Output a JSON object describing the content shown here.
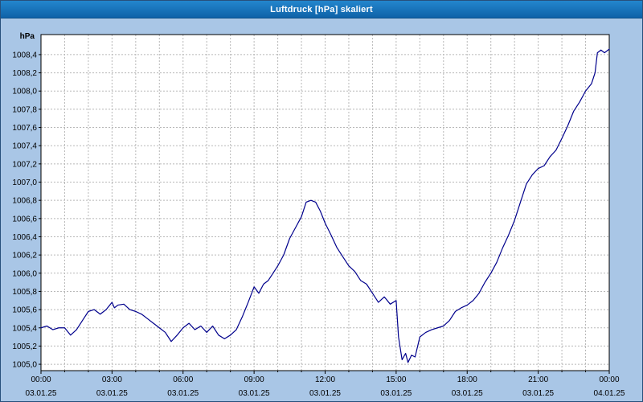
{
  "window": {
    "title": "Luftdruck [hPa] skaliert"
  },
  "colors": {
    "window_background": "#a9c6e6",
    "titlebar_background": "#1673b9",
    "titlebar_text": "#ffffff",
    "plot_background": "#ffffff",
    "grid": "#b8b8b8",
    "axis": "#000000",
    "series_line": "#00008c"
  },
  "chart_data": {
    "type": "line",
    "title": "Luftdruck [hPa] skaliert",
    "xlabel": "",
    "ylabel": "hPa",
    "x_unit": "hours_of_day",
    "grid": "dotted",
    "legend": "none",
    "xlim": [
      0,
      24
    ],
    "ylim": [
      1004.93,
      1008.62
    ],
    "y_ticks": [
      1005.0,
      1005.2,
      1005.4,
      1005.6,
      1005.8,
      1006.0,
      1006.2,
      1006.4,
      1006.6,
      1006.8,
      1007.0,
      1007.2,
      1007.4,
      1007.6,
      1007.8,
      1008.0,
      1008.2,
      1008.4
    ],
    "y_tick_labels": [
      "1005,0",
      "1005,2",
      "1005,4",
      "1005,6",
      "1005,8",
      "1006,0",
      "1006,2",
      "1006,4",
      "1006,6",
      "1006,8",
      "1007,0",
      "1007,2",
      "1007,4",
      "1007,6",
      "1007,8",
      "1008,0",
      "1008,2",
      "1008,4"
    ],
    "x_major_ticks": [
      0,
      3,
      6,
      9,
      12,
      15,
      18,
      21,
      24
    ],
    "x_tick_labels": [
      "00:00",
      "03:00",
      "06:00",
      "09:00",
      "12:00",
      "15:00",
      "18:00",
      "21:00",
      "00:00"
    ],
    "x_date_labels": [
      "03.01.25",
      "03.01.25",
      "03.01.25",
      "03.01.25",
      "03.01.25",
      "03.01.25",
      "03.01.25",
      "03.01.25",
      "04.01.25"
    ],
    "x_minor_grid_step_hours": 1,
    "x": [
      0,
      0.25,
      0.5,
      0.75,
      1,
      1.25,
      1.5,
      1.75,
      2,
      2.25,
      2.5,
      2.75,
      3,
      3.1,
      3.25,
      3.5,
      3.75,
      4,
      4.25,
      4.5,
      4.75,
      5,
      5.25,
      5.5,
      5.75,
      6,
      6.25,
      6.5,
      6.75,
      7,
      7.25,
      7.5,
      7.75,
      8,
      8.25,
      8.5,
      8.75,
      9,
      9.2,
      9.4,
      9.6,
      9.8,
      10,
      10.25,
      10.5,
      10.75,
      11,
      11.2,
      11.4,
      11.6,
      11.8,
      12,
      12.25,
      12.5,
      12.75,
      13,
      13.25,
      13.5,
      13.75,
      14,
      14.25,
      14.5,
      14.75,
      15,
      15.1,
      15.25,
      15.4,
      15.5,
      15.65,
      15.8,
      16,
      16.25,
      16.5,
      16.75,
      17,
      17.25,
      17.5,
      17.75,
      18,
      18.25,
      18.5,
      18.75,
      19,
      19.25,
      19.5,
      19.75,
      20,
      20.25,
      20.5,
      20.75,
      21,
      21.25,
      21.5,
      21.75,
      22,
      22.25,
      22.5,
      22.75,
      23,
      23.25,
      23.4,
      23.5,
      23.65,
      23.8,
      24
    ],
    "values": [
      1005.4,
      1005.42,
      1005.38,
      1005.4,
      1005.4,
      1005.32,
      1005.38,
      1005.48,
      1005.58,
      1005.6,
      1005.55,
      1005.6,
      1005.68,
      1005.62,
      1005.65,
      1005.66,
      1005.6,
      1005.58,
      1005.55,
      1005.5,
      1005.45,
      1005.4,
      1005.35,
      1005.25,
      1005.32,
      1005.4,
      1005.45,
      1005.38,
      1005.42,
      1005.35,
      1005.42,
      1005.32,
      1005.28,
      1005.32,
      1005.38,
      1005.52,
      1005.68,
      1005.85,
      1005.78,
      1005.88,
      1005.92,
      1006.0,
      1006.08,
      1006.2,
      1006.38,
      1006.5,
      1006.62,
      1006.78,
      1006.8,
      1006.78,
      1006.68,
      1006.55,
      1006.42,
      1006.28,
      1006.18,
      1006.08,
      1006.02,
      1005.92,
      1005.88,
      1005.78,
      1005.68,
      1005.74,
      1005.66,
      1005.7,
      1005.3,
      1005.05,
      1005.12,
      1005.02,
      1005.1,
      1005.08,
      1005.3,
      1005.35,
      1005.38,
      1005.4,
      1005.42,
      1005.48,
      1005.58,
      1005.62,
      1005.65,
      1005.7,
      1005.78,
      1005.9,
      1006.0,
      1006.12,
      1006.28,
      1006.42,
      1006.58,
      1006.78,
      1006.98,
      1007.08,
      1007.15,
      1007.18,
      1007.28,
      1007.35,
      1007.48,
      1007.62,
      1007.78,
      1007.88,
      1008.0,
      1008.08,
      1008.2,
      1008.42,
      1008.45,
      1008.42,
      1008.46
    ]
  }
}
